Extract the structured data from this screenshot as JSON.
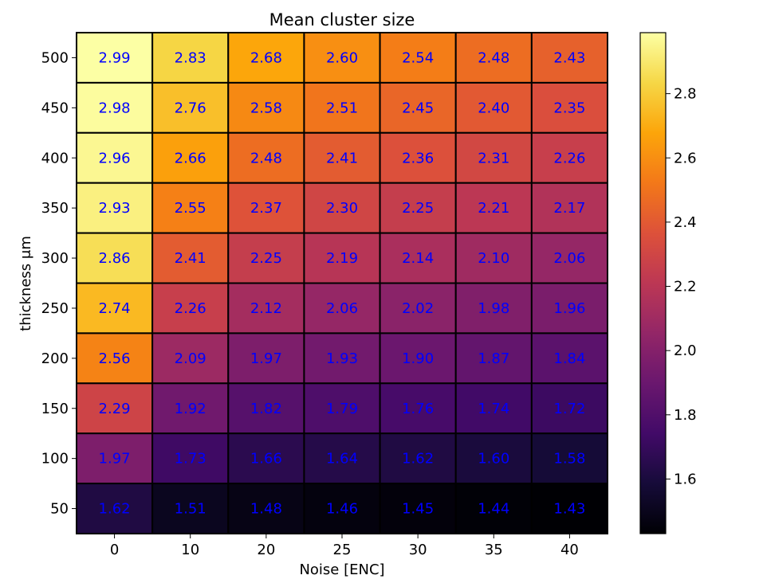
{
  "chart_data": {
    "type": "heatmap",
    "title": "Mean cluster size",
    "xlabel": "Noise [ENC]",
    "ylabel": "thickness μm",
    "x_categories": [
      "0",
      "10",
      "20",
      "25",
      "30",
      "35",
      "40"
    ],
    "y_categories": [
      "500",
      "450",
      "400",
      "350",
      "300",
      "250",
      "200",
      "150",
      "100",
      "50"
    ],
    "values": [
      [
        2.99,
        2.83,
        2.68,
        2.6,
        2.54,
        2.48,
        2.43
      ],
      [
        2.98,
        2.76,
        2.58,
        2.51,
        2.45,
        2.4,
        2.35
      ],
      [
        2.96,
        2.66,
        2.48,
        2.41,
        2.36,
        2.31,
        2.26
      ],
      [
        2.93,
        2.55,
        2.37,
        2.3,
        2.25,
        2.21,
        2.17
      ],
      [
        2.86,
        2.41,
        2.25,
        2.19,
        2.14,
        2.1,
        2.06
      ],
      [
        2.74,
        2.26,
        2.12,
        2.06,
        2.02,
        1.98,
        1.96
      ],
      [
        2.56,
        2.09,
        1.97,
        1.93,
        1.9,
        1.87,
        1.84
      ],
      [
        2.29,
        1.92,
        1.82,
        1.79,
        1.76,
        1.74,
        1.72
      ],
      [
        1.97,
        1.73,
        1.66,
        1.64,
        1.62,
        1.6,
        1.58
      ],
      [
        1.62,
        1.51,
        1.48,
        1.46,
        1.45,
        1.44,
        1.43
      ]
    ],
    "colormap": "inferno",
    "colorbar": {
      "min": 1.43,
      "max": 2.99,
      "ticks": [
        "1.6",
        "1.8",
        "2.0",
        "2.2",
        "2.4",
        "2.6",
        "2.8"
      ]
    },
    "cell_label_color": "#0000ff",
    "cell_border_color": "#000000",
    "grid": false,
    "legend": "colorbar-right"
  }
}
